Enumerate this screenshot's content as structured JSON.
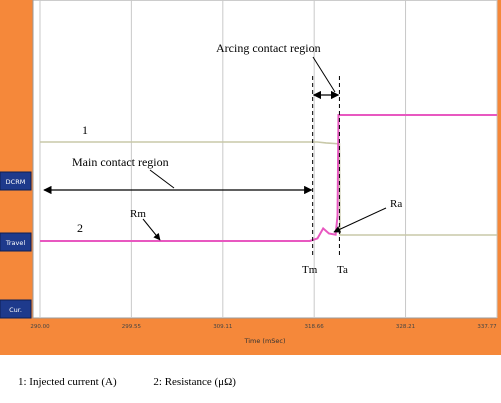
{
  "chart_data": {
    "type": "line",
    "title": "",
    "xlabel": "Time (mSec)",
    "x_ticks": [
      "290.00",
      "299.55",
      "309.11",
      "318.66",
      "328.21",
      "337.77"
    ],
    "xlim": [
      290.0,
      337.77
    ],
    "side_buttons": [
      "DCRM",
      "Travel",
      "Cur."
    ],
    "series": [
      {
        "name": "1",
        "color": "#c8c8a8",
        "points": [
          [
            290.0,
            1.0
          ],
          [
            319.0,
            1.0
          ],
          [
            319.9,
            0.99
          ],
          [
            321.3,
            0.98
          ],
          [
            321.35,
            0.0
          ],
          [
            337.77,
            0.0
          ]
        ]
      },
      {
        "name": "2",
        "color": "#e858c0",
        "points": [
          [
            290.0,
            0.0
          ],
          [
            318.2,
            0.0
          ],
          [
            319.0,
            0.02
          ],
          [
            319.6,
            0.1
          ],
          [
            320.2,
            0.06
          ],
          [
            320.9,
            0.05
          ],
          [
            321.1,
            0.2
          ],
          [
            321.2,
            1.0
          ],
          [
            337.77,
            1.0
          ]
        ]
      }
    ],
    "annotations": {
      "arcing": "Arcing contact region",
      "main": "Main contact region",
      "label1": "1",
      "label2": "2",
      "rm": "Rm",
      "ra": "Ra",
      "tm": "Tm",
      "ta": "Ta"
    },
    "markers": {
      "tm": 318.5,
      "ta": 321.3
    },
    "colors": {
      "frame": "#f5883a",
      "button": "#1e3a8c",
      "plot_bg": "#ffffff",
      "grid": "#c8c8c8"
    }
  },
  "legend": {
    "item1": "1: Injected current (A)",
    "item2": "2: Resistance (μΩ)"
  }
}
